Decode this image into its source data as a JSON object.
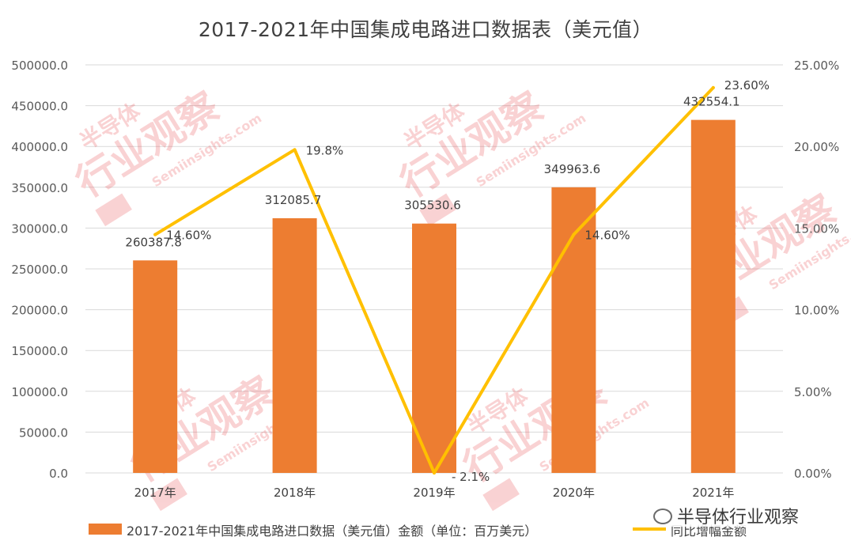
{
  "title": "2017-2021年中国集成电路进口数据表（美元值）",
  "watermark": {
    "lines": [
      "半导体",
      "行业观察",
      "Semiinsights.com"
    ]
  },
  "wechat_badge": {
    "icon": "wechat-icon",
    "label": "半导体行业观察"
  },
  "chart_data": {
    "type": "bar",
    "categories": [
      "2017年",
      "2018年",
      "2019年",
      "2020年",
      "2021年"
    ],
    "series": [
      {
        "name": "2017-2021年中国集成电路进口数据（美元值）金额（单位：百万美元）",
        "type": "bar",
        "axis": "left",
        "color": "#ED7D31",
        "values": [
          260387.8,
          312085.7,
          305530.6,
          349963.6,
          432554.1
        ],
        "labels": [
          "260387.8",
          "312085.7",
          "305530.6",
          "349963.6",
          "432554.1"
        ]
      },
      {
        "name": "同比增幅金额",
        "type": "line",
        "axis": "right",
        "color": "#FFC000",
        "values": [
          14.6,
          19.8,
          -2.1,
          14.6,
          23.6
        ],
        "labels": [
          "14.60%",
          "19.8%",
          "- 2.1%",
          "14.60%",
          "23.60%"
        ]
      }
    ],
    "y_left": {
      "min": 0,
      "max": 500000,
      "step": 50000,
      "ticks": [
        "0.0",
        "50000.0",
        "100000.0",
        "150000.0",
        "200000.0",
        "250000.0",
        "300000.0",
        "350000.0",
        "400000.0",
        "450000.0",
        "500000.0"
      ]
    },
    "y_right": {
      "min": 0,
      "max": 25,
      "step": 5,
      "ticks": [
        "0.00%",
        "5.00%",
        "10.00%",
        "15.00%",
        "20.00%",
        "25.00%"
      ]
    },
    "grid": true,
    "legend_position": "bottom"
  }
}
